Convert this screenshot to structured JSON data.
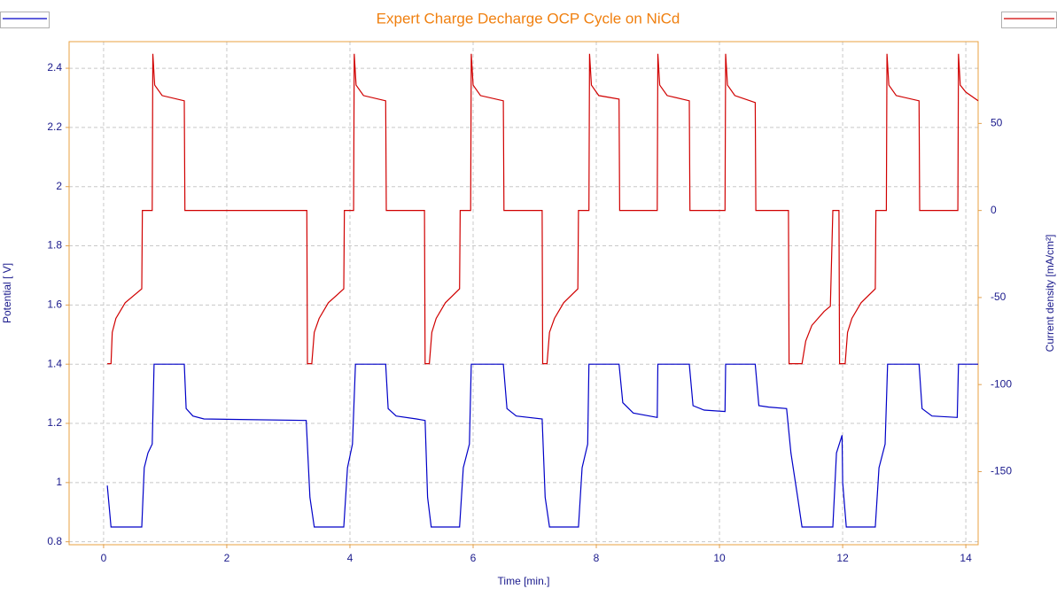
{
  "chart_data": {
    "type": "line",
    "title": "Expert Charge Decharge OCP Cycle on NiCd",
    "x_label": "Time [min.]",
    "y_label": "Potential [ V]",
    "y2_label": "Current density [mA/cm²]",
    "xlim": [
      -0.56,
      14.2
    ],
    "xticks": [
      0,
      2,
      4,
      6,
      8,
      10,
      12,
      14
    ],
    "ylim": [
      0.79,
      2.49
    ],
    "yticks": [
      0.8,
      1,
      1.2,
      1.4,
      1.6,
      1.8,
      2,
      2.2,
      2.4
    ],
    "y2lim": [
      -192,
      97
    ],
    "y2ticks": [
      -150,
      -100,
      -50,
      0,
      50
    ],
    "grid": true,
    "series": [
      {
        "color": "#0000c8",
        "axis": "y",
        "x": [
          0.06,
          0.12,
          0.62,
          0.66,
          0.72,
          0.79,
          0.82,
          1.31,
          1.34,
          1.45,
          1.63,
          3.29,
          3.35,
          3.42,
          3.9,
          3.96,
          4.04,
          4.09,
          4.58,
          4.62,
          4.75,
          5.08,
          5.22,
          5.26,
          5.32,
          5.78,
          5.84,
          5.94,
          5.97,
          6.49,
          6.55,
          6.7,
          7.12,
          7.17,
          7.24,
          7.71,
          7.77,
          7.86,
          7.88,
          8.37,
          8.43,
          8.6,
          8.99,
          9.0,
          9.51,
          9.57,
          9.75,
          10.09,
          10.1,
          10.58,
          10.64,
          10.8,
          11.09,
          11.16,
          11.27,
          11.34,
          11.84,
          11.9,
          11.99,
          12.0,
          12.06,
          12.53,
          12.59,
          12.69,
          12.73,
          13.24,
          13.29,
          13.45,
          13.86,
          13.88,
          14.2
        ],
        "values": [
          0.99,
          0.85,
          0.85,
          1.05,
          1.1,
          1.13,
          1.4,
          1.4,
          1.25,
          1.225,
          1.215,
          1.21,
          0.95,
          0.85,
          0.85,
          1.05,
          1.13,
          1.4,
          1.4,
          1.25,
          1.225,
          1.215,
          1.21,
          0.95,
          0.85,
          0.85,
          1.05,
          1.13,
          1.4,
          1.4,
          1.25,
          1.225,
          1.215,
          0.95,
          0.85,
          0.85,
          1.05,
          1.13,
          1.4,
          1.4,
          1.27,
          1.235,
          1.22,
          1.4,
          1.4,
          1.26,
          1.245,
          1.24,
          1.4,
          1.4,
          1.26,
          1.255,
          1.25,
          1.1,
          0.95,
          0.85,
          0.85,
          1.1,
          1.16,
          1.0,
          0.85,
          0.85,
          1.05,
          1.13,
          1.4,
          1.4,
          1.25,
          1.225,
          1.22,
          1.4,
          1.4
        ]
      },
      {
        "color": "#d00000",
        "axis": "y2",
        "x": [
          0.06,
          0.12,
          0.14,
          0.2,
          0.35,
          0.62,
          0.63,
          0.79,
          0.8,
          0.83,
          0.95,
          1.31,
          1.32,
          3.3,
          3.31,
          3.38,
          3.42,
          3.5,
          3.65,
          3.9,
          3.91,
          4.06,
          4.07,
          4.1,
          4.22,
          4.58,
          4.59,
          5.21,
          5.22,
          5.29,
          5.33,
          5.4,
          5.55,
          5.78,
          5.79,
          5.96,
          5.97,
          6.0,
          6.12,
          6.49,
          6.5,
          7.12,
          7.13,
          7.2,
          7.24,
          7.32,
          7.47,
          7.7,
          7.71,
          7.88,
          7.89,
          7.92,
          8.04,
          8.37,
          8.38,
          8.99,
          9.0,
          9.03,
          9.15,
          9.51,
          9.52,
          10.09,
          10.1,
          10.13,
          10.25,
          10.58,
          10.59,
          11.12,
          11.13,
          11.34,
          11.4,
          11.5,
          11.7,
          11.8,
          11.84,
          11.94,
          11.95,
          12.04,
          12.08,
          12.15,
          12.3,
          12.53,
          12.54,
          12.71,
          12.72,
          12.75,
          12.87,
          13.24,
          13.25,
          13.87,
          13.88,
          13.91,
          14.0,
          14.2
        ],
        "values": [
          -88,
          -88,
          -70,
          -62,
          -53,
          -45,
          0,
          0,
          90,
          72,
          66,
          63,
          0,
          0,
          -88,
          -88,
          -70,
          -62,
          -53,
          -45,
          0,
          0,
          90,
          72,
          66,
          63,
          0,
          0,
          -88,
          -88,
          -70,
          -62,
          -53,
          -45,
          0,
          0,
          90,
          72,
          66,
          63,
          0,
          0,
          -88,
          -88,
          -70,
          -62,
          -53,
          -45,
          0,
          0,
          90,
          72,
          66,
          64,
          0,
          0,
          90,
          72,
          66,
          63,
          0,
          0,
          90,
          72,
          66,
          62,
          0,
          0,
          -88,
          -88,
          -75,
          -66,
          -58,
          -55,
          0,
          0,
          -88,
          -88,
          -70,
          -62,
          -53,
          -45,
          0,
          0,
          90,
          72,
          66,
          63,
          0,
          0,
          90,
          72,
          68,
          63
        ]
      }
    ]
  }
}
